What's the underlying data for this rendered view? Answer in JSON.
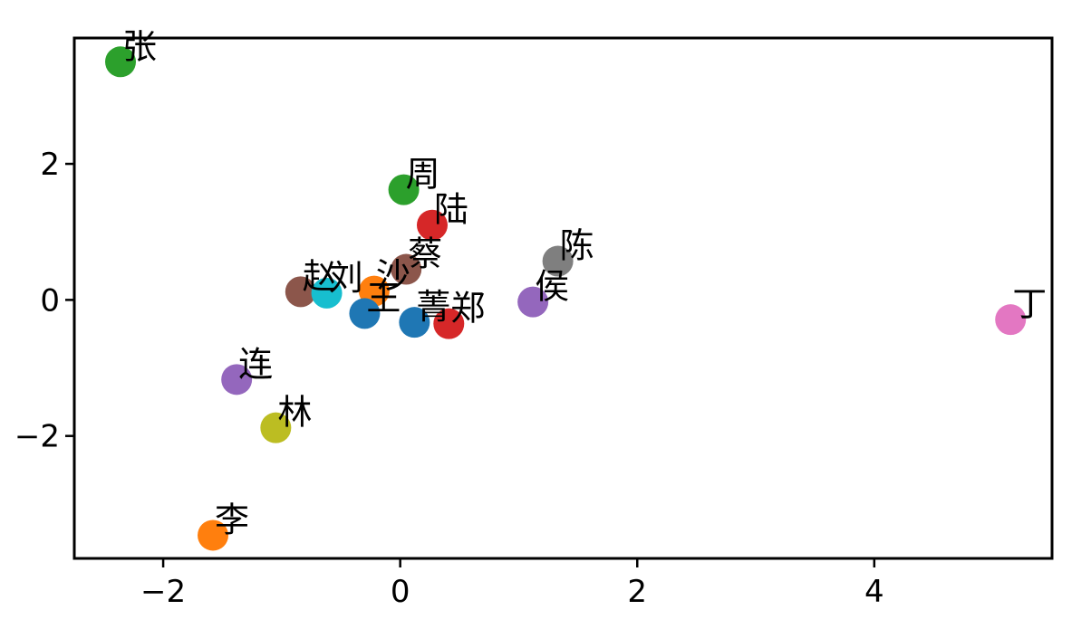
{
  "chart_data": {
    "type": "scatter",
    "title": "",
    "xlabel": "",
    "ylabel": "",
    "xlim": [
      -2.75,
      5.5
    ],
    "ylim": [
      -3.8,
      3.85
    ],
    "xticks": [
      -2,
      0,
      2,
      4
    ],
    "yticks": [
      -2,
      0,
      2
    ],
    "grid": false,
    "points": [
      {
        "label": "张",
        "x": -2.36,
        "y": 3.5,
        "color": "#2ca02c"
      },
      {
        "label": "周",
        "x": 0.03,
        "y": 1.62,
        "color": "#2ca02c"
      },
      {
        "label": "陆",
        "x": 0.27,
        "y": 1.1,
        "color": "#d62728"
      },
      {
        "label": "蔡",
        "x": 0.05,
        "y": 0.45,
        "color": "#8c564b"
      },
      {
        "label": "陈",
        "x": 1.33,
        "y": 0.57,
        "color": "#7f7f7f"
      },
      {
        "label": "侯",
        "x": 1.12,
        "y": -0.03,
        "color": "#9467bd"
      },
      {
        "label": "赵",
        "x": -0.84,
        "y": 0.12,
        "color": "#8c564b"
      },
      {
        "label": "刘",
        "x": -0.62,
        "y": 0.1,
        "color": "#17becf"
      },
      {
        "label": "沙",
        "x": -0.22,
        "y": 0.13,
        "color": "#ff7f0e"
      },
      {
        "label": "王",
        "x": -0.3,
        "y": -0.2,
        "color": "#1f77b4"
      },
      {
        "label": "菁",
        "x": 0.12,
        "y": -0.33,
        "color": "#1f77b4"
      },
      {
        "label": "郑",
        "x": 0.41,
        "y": -0.35,
        "color": "#d62728"
      },
      {
        "label": "丁",
        "x": 5.15,
        "y": -0.29,
        "color": "#e377c2"
      },
      {
        "label": "连",
        "x": -1.38,
        "y": -1.17,
        "color": "#9467bd"
      },
      {
        "label": "林",
        "x": -1.05,
        "y": -1.88,
        "color": "#bcbd22"
      },
      {
        "label": "李",
        "x": -1.58,
        "y": -3.46,
        "color": "#ff7f0e"
      }
    ]
  }
}
